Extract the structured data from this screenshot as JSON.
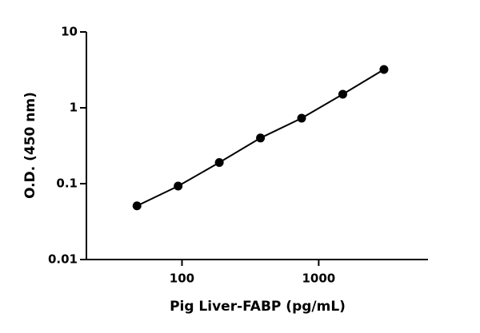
{
  "chart_data": {
    "type": "scatter-line",
    "x_label": "Pig Liver-FABP (pg/mL)",
    "y_label": "O.D. (450 nm)",
    "x": [
      46.875,
      93.75,
      187.5,
      375,
      750,
      1500,
      3000
    ],
    "values": [
      0.051,
      0.093,
      0.19,
      0.4,
      0.73,
      1.51,
      3.2
    ],
    "color": "#000000",
    "x_log": true,
    "y_log": true,
    "xlim": [
      20,
      6300
    ],
    "ylim": [
      0.01,
      10
    ],
    "xticks": [
      100,
      1000
    ],
    "yticks": [
      0.01,
      0.1,
      1,
      10
    ]
  }
}
